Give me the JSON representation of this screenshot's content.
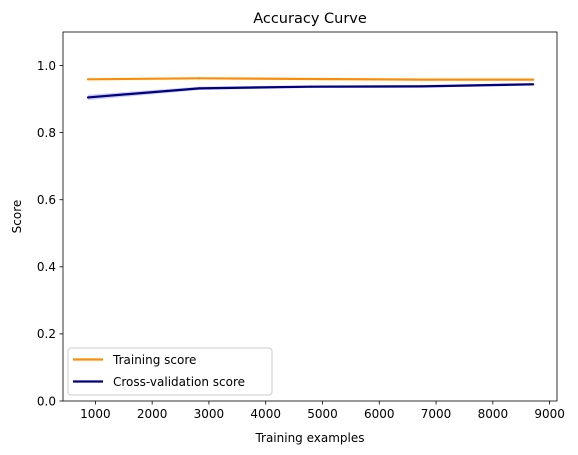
{
  "chart_data": {
    "type": "line",
    "title": "Accuracy Curve",
    "xlabel": "Training examples",
    "ylabel": "Score",
    "xlim": [
      430,
      9130
    ],
    "ylim": [
      0.0,
      1.1
    ],
    "xticks": [
      1000,
      2000,
      3000,
      4000,
      5000,
      6000,
      7000,
      8000,
      9000
    ],
    "yticks": [
      0.0,
      0.2,
      0.4,
      0.6,
      0.8,
      1.0
    ],
    "ytick_labels": [
      "0.0",
      "0.2",
      "0.4",
      "0.6",
      "0.8",
      "1.0"
    ],
    "grid": false,
    "legend_position": "lower-left",
    "x": [
      870,
      2830,
      4790,
      6750,
      8710
    ],
    "series": [
      {
        "name": "Training score",
        "color": "#ff8c00",
        "values": [
          0.959,
          0.962,
          0.96,
          0.958,
          0.958
        ],
        "band_lower": [
          0.957,
          0.961,
          0.959,
          0.957,
          0.957
        ],
        "band_upper": [
          0.961,
          0.963,
          0.961,
          0.959,
          0.959
        ]
      },
      {
        "name": "Cross-validation score",
        "color": "#000080",
        "band_color": "#0000cd",
        "values": [
          0.905,
          0.932,
          0.937,
          0.938,
          0.944
        ],
        "band_lower": [
          0.897,
          0.927,
          0.933,
          0.934,
          0.94
        ],
        "band_upper": [
          0.913,
          0.937,
          0.941,
          0.942,
          0.948
        ]
      }
    ]
  }
}
